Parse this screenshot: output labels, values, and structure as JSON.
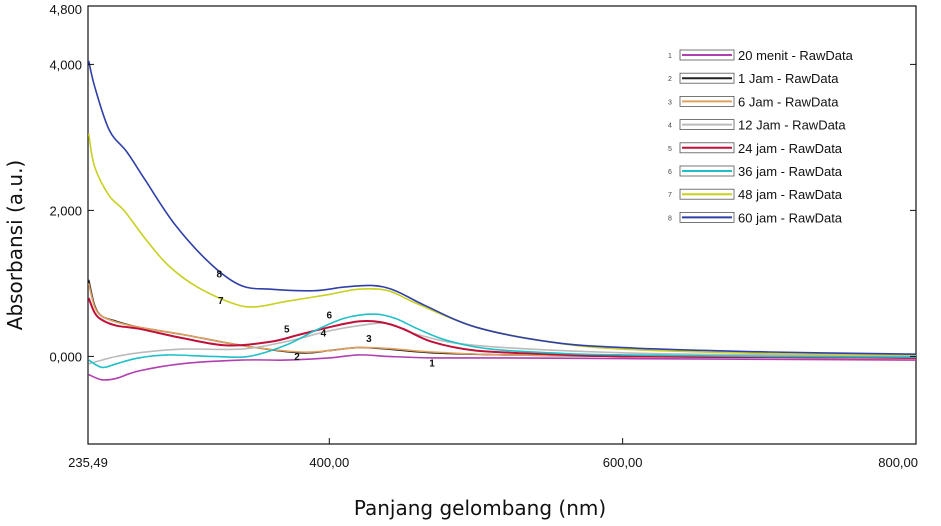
{
  "chart_data": {
    "type": "line",
    "xlabel": "Panjang gelombang (nm)",
    "ylabel": "Absorbansi (a.u.)",
    "xlim": [
      235.49,
      800
    ],
    "ylim": [
      -1.2,
      4.8
    ],
    "x_ticks": [
      {
        "value": 235.49,
        "label": "235,49"
      },
      {
        "value": 400,
        "label": "400,00"
      },
      {
        "value": 600,
        "label": "600,00"
      },
      {
        "value": 800,
        "label": "800,00"
      }
    ],
    "y_ticks": [
      {
        "value": 0,
        "label": "0,000"
      },
      {
        "value": 2,
        "label": "2,000"
      },
      {
        "value": 4,
        "label": "4,000"
      },
      {
        "value": 4.8,
        "label": "4,800"
      }
    ],
    "grid": false,
    "legend": "top-right",
    "series": [
      {
        "num": "1",
        "name": "20 menit - RawData",
        "color": "#b040b0",
        "x": [
          236,
          245,
          255,
          270,
          300,
          340,
          370,
          400,
          420,
          440,
          470,
          520,
          600,
          700,
          800
        ],
        "y": [
          -0.25,
          -0.32,
          -0.3,
          -0.2,
          -0.1,
          -0.05,
          -0.05,
          -0.02,
          0.02,
          0.0,
          -0.02,
          -0.02,
          -0.03,
          -0.04,
          -0.05
        ]
      },
      {
        "num": "2",
        "name": "1 Jam - RawData",
        "color": "#222222",
        "x": [
          236,
          240,
          245,
          255,
          270,
          300,
          340,
          380,
          400,
          420,
          440,
          470,
          520,
          600,
          700,
          800
        ],
        "y": [
          1.05,
          0.7,
          0.55,
          0.48,
          0.4,
          0.3,
          0.15,
          0.05,
          0.08,
          0.12,
          0.1,
          0.05,
          0.02,
          0.0,
          -0.01,
          -0.02
        ]
      },
      {
        "num": "3",
        "name": "6 Jam - RawData",
        "color": "#e0a060",
        "x": [
          236,
          240,
          245,
          255,
          270,
          300,
          340,
          380,
          400,
          420,
          440,
          470,
          520,
          600,
          700,
          800
        ],
        "y": [
          1.0,
          0.68,
          0.55,
          0.47,
          0.4,
          0.3,
          0.15,
          0.06,
          0.08,
          0.12,
          0.11,
          0.06,
          0.02,
          0.01,
          0.0,
          -0.01
        ]
      },
      {
        "num": "4",
        "name": "12 Jam - RawData",
        "color": "#bbbbbb",
        "x": [
          236,
          245,
          255,
          270,
          300,
          340,
          370,
          400,
          420,
          440,
          460,
          500,
          600,
          700,
          800
        ],
        "y": [
          -0.1,
          -0.05,
          0.0,
          0.05,
          0.1,
          0.1,
          0.2,
          0.35,
          0.42,
          0.45,
          0.3,
          0.15,
          0.05,
          0.02,
          0.01
        ]
      },
      {
        "num": "5",
        "name": "24 jam - RawData",
        "color": "#c0103a",
        "x": [
          236,
          240,
          245,
          255,
          270,
          300,
          330,
          360,
          380,
          400,
          420,
          435,
          450,
          470,
          500,
          550,
          600,
          700,
          800
        ],
        "y": [
          0.8,
          0.6,
          0.5,
          0.42,
          0.38,
          0.25,
          0.15,
          0.2,
          0.3,
          0.4,
          0.48,
          0.47,
          0.38,
          0.2,
          0.08,
          0.03,
          0.0,
          -0.01,
          -0.02
        ]
      },
      {
        "num": "6",
        "name": "36 jam - RawData",
        "color": "#20c0c8",
        "x": [
          236,
          245,
          255,
          270,
          290,
          320,
          345,
          370,
          390,
          410,
          430,
          445,
          460,
          480,
          510,
          560,
          600,
          700,
          800
        ],
        "y": [
          -0.05,
          -0.15,
          -0.1,
          -0.02,
          0.02,
          0.0,
          0.0,
          0.15,
          0.35,
          0.52,
          0.58,
          0.52,
          0.38,
          0.22,
          0.1,
          0.04,
          0.02,
          0.0,
          -0.01
        ]
      },
      {
        "num": "7",
        "name": "48 jam - RawData",
        "color": "#c8d020",
        "x": [
          236,
          240,
          250,
          260,
          275,
          290,
          310,
          335,
          350,
          370,
          400,
          420,
          440,
          460,
          500,
          550,
          600,
          700,
          800
        ],
        "y": [
          3.05,
          2.6,
          2.2,
          2.0,
          1.6,
          1.25,
          0.95,
          0.72,
          0.68,
          0.75,
          0.85,
          0.92,
          0.9,
          0.72,
          0.4,
          0.2,
          0.1,
          0.04,
          0.02
        ]
      },
      {
        "num": "8",
        "name": "60 jam - RawData",
        "color": "#3040a8",
        "x": [
          236,
          240,
          250,
          262,
          275,
          295,
          320,
          340,
          360,
          390,
          410,
          430,
          445,
          465,
          500,
          550,
          600,
          700,
          800
        ],
        "y": [
          4.05,
          3.7,
          3.1,
          2.8,
          2.4,
          1.8,
          1.25,
          0.97,
          0.92,
          0.9,
          0.95,
          0.97,
          0.9,
          0.7,
          0.4,
          0.2,
          0.12,
          0.06,
          0.03
        ]
      }
    ],
    "curve_labels": [
      {
        "text": "8",
        "x": 325,
        "y": 1.08
      },
      {
        "text": "7",
        "x": 326,
        "y": 0.72
      },
      {
        "text": "6",
        "x": 400,
        "y": 0.52
      },
      {
        "text": "5",
        "x": 371,
        "y": 0.33
      },
      {
        "text": "4",
        "x": 396,
        "y": 0.27
      },
      {
        "text": "3",
        "x": 427,
        "y": 0.2
      },
      {
        "text": "2",
        "x": 378,
        "y": -0.05
      },
      {
        "text": "1",
        "x": 470,
        "y": -0.14
      }
    ]
  }
}
